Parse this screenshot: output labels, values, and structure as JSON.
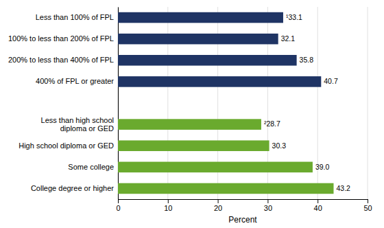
{
  "chart_data": {
    "type": "bar",
    "orientation": "horizontal",
    "categories": [
      "Less than 100% of FPL",
      "100% to less than 200% of FPL",
      "200% to less than 400% of FPL",
      "400% of FPL or greater",
      null,
      "Less than high school\ndiploma or GED",
      "High school diploma or GED",
      "Some college",
      "College degree or higher"
    ],
    "values": [
      33.1,
      32.1,
      35.8,
      40.7,
      null,
      28.7,
      30.3,
      39.0,
      43.2
    ],
    "colors": [
      "#1f3464",
      "#1f3464",
      "#1f3464",
      "#1f3464",
      null,
      "#6aaa2e",
      "#6aaa2e",
      "#6aaa2e",
      "#6aaa2e"
    ],
    "data_labels": true,
    "value_labels": [
      "¹33.1",
      "32.1",
      "35.8",
      "40.7",
      null,
      "²28.7",
      "30.3",
      "39.0",
      "43.2"
    ],
    "xlabel": "Percent",
    "xlim": [
      0,
      50
    ],
    "xticks": [
      0,
      10,
      20,
      30,
      40,
      50
    ],
    "grid": true
  }
}
